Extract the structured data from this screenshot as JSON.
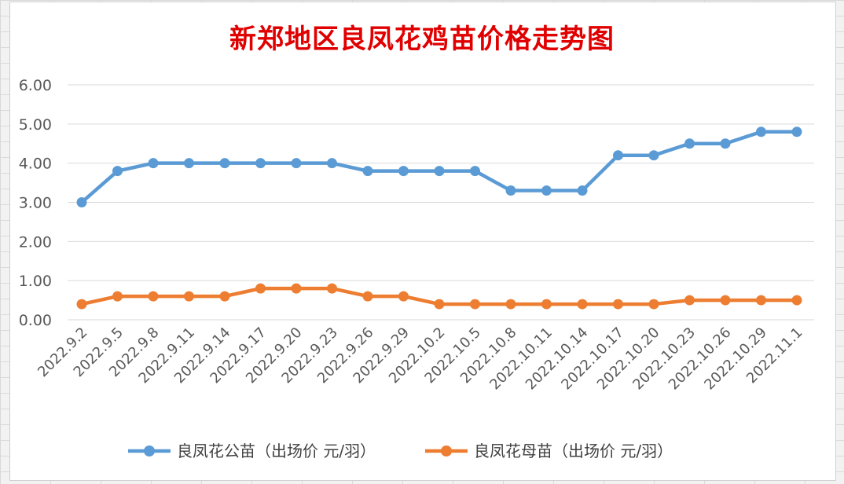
{
  "chart_data": {
    "type": "line",
    "title": "新郑地区良凤花鸡苗价格走势图",
    "categories": [
      "2022.9.2",
      "2022.9.5",
      "2022.9.8",
      "2022.9.11",
      "2022.9.14",
      "2022.9.17",
      "2022.9.20",
      "2022.9.23",
      "2022.9.26",
      "2022.9.29",
      "2022.10.2",
      "2022.10.5",
      "2022.10.8",
      "2022.10.11",
      "2022.10.14",
      "2022.10.17",
      "2022.10.20",
      "2022.10.23",
      "2022.10.26",
      "2022.10.29",
      "2022.11.1"
    ],
    "series": [
      {
        "name": "良凤花公苗（出场价 元/羽）",
        "color": "#5b9bd5",
        "values": [
          3.0,
          3.8,
          4.0,
          4.0,
          4.0,
          4.0,
          4.0,
          4.0,
          3.8,
          3.8,
          3.8,
          3.8,
          3.3,
          3.3,
          3.3,
          4.2,
          4.2,
          4.5,
          4.5,
          4.8,
          4.8
        ]
      },
      {
        "name": "良凤花母苗（出场价 元/羽）",
        "color": "#ed7d31",
        "values": [
          0.4,
          0.6,
          0.6,
          0.6,
          0.6,
          0.8,
          0.8,
          0.8,
          0.6,
          0.6,
          0.4,
          0.4,
          0.4,
          0.4,
          0.4,
          0.4,
          0.4,
          0.5,
          0.5,
          0.5,
          0.5
        ]
      }
    ],
    "ylim": [
      0,
      6
    ],
    "yticks": [
      "0.00",
      "1.00",
      "2.00",
      "3.00",
      "4.00",
      "5.00",
      "6.00"
    ],
    "grid": true,
    "legend": "bottom"
  }
}
